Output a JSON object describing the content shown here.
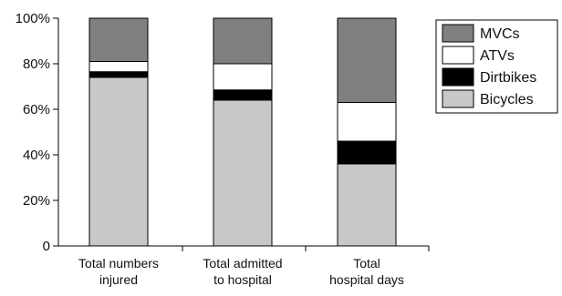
{
  "chart_data": {
    "type": "bar",
    "stacked": true,
    "percent_stacked": true,
    "categories": [
      "Total numbers injured",
      "Total admitted to hospital",
      "Total hospital days"
    ],
    "category_lines": [
      [
        "Total numbers",
        "injured"
      ],
      [
        "Total admitted",
        "to hospital"
      ],
      [
        "Total",
        "hospital days"
      ]
    ],
    "series": [
      {
        "name": "Bicycles",
        "values": [
          74,
          64,
          36
        ],
        "color": "#c8c8c8"
      },
      {
        "name": "Dirtbikes",
        "values": [
          2.5,
          4.5,
          10
        ],
        "color": "#000000"
      },
      {
        "name": "ATVs",
        "values": [
          4.5,
          11.5,
          17
        ],
        "color": "#ffffff"
      },
      {
        "name": "MVCs",
        "values": [
          19,
          20,
          37
        ],
        "color": "#808080"
      }
    ],
    "legend_order": [
      "MVCs",
      "ATVs",
      "Dirtbikes",
      "Bicycles"
    ],
    "ylim": [
      0,
      100
    ],
    "yticks": [
      0,
      20,
      40,
      60,
      80,
      100
    ],
    "ytick_labels": [
      "0",
      "20%",
      "40%",
      "60%",
      "80%",
      "100%"
    ],
    "title": "",
    "xlabel": "",
    "ylabel": "",
    "grid": false,
    "legend_position": "top-right"
  }
}
